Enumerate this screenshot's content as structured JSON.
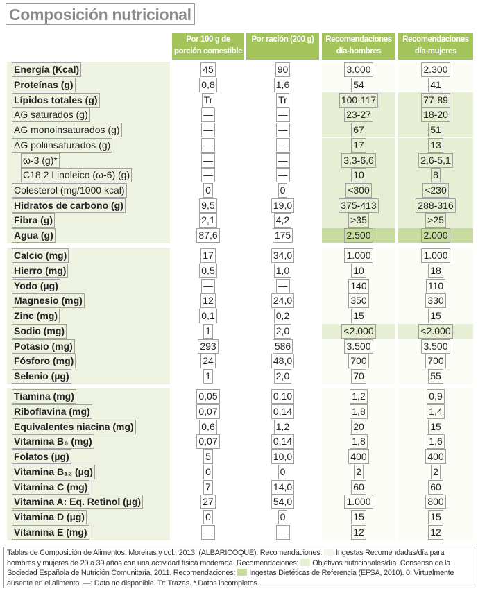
{
  "title": "Composición nutricional",
  "headers": [
    "Por 100 g de porción comestible",
    "Por ración (200 g)",
    "Recomendaciones día-hombres",
    "Recomendaciones día-mujeres"
  ],
  "colors": {
    "header": "#a3c45a",
    "label_bg": "#eef3e1",
    "ingestas": "#f3f6ea",
    "objetivos": "#e6eed4",
    "efsa": "#c9dca0"
  },
  "sections": [
    {
      "rows": [
        {
          "label": "Energía (Kcal)",
          "bold": true,
          "v": [
            "45",
            "90",
            "3.000",
            "2.300"
          ],
          "hl": 0
        },
        {
          "label": "Proteínas (g)",
          "bold": true,
          "v": [
            "0,8",
            "1,6",
            "54",
            "41"
          ],
          "hl": 0
        },
        {
          "label": "Lípidos totales (g)",
          "bold": true,
          "v": [
            "Tr",
            "Tr",
            "100-117",
            "77-89"
          ],
          "hl": 1
        },
        {
          "label": "AG saturados (g)",
          "bold": false,
          "v": [
            "—",
            "—",
            "23-27",
            "18-20"
          ],
          "hl": 1
        },
        {
          "label": "AG monoinsaturados (g)",
          "bold": false,
          "v": [
            "—",
            "—",
            "67",
            "51"
          ],
          "hl": 1
        },
        {
          "label": "AG poliinsaturados (g)",
          "bold": false,
          "v": [
            "—",
            "—",
            "17",
            "13"
          ],
          "hl": 1
        },
        {
          "label": "ω-3 (g)*",
          "bold": false,
          "indent": true,
          "v": [
            "—",
            "—",
            "3,3-6,6",
            "2,6-5,1"
          ],
          "hl": 1
        },
        {
          "label": "C18:2 Linoleico (ω-6) (g)",
          "bold": false,
          "indent": true,
          "v": [
            "—",
            "—",
            "10",
            "8"
          ],
          "hl": 1
        },
        {
          "label": "Colesterol (mg/1000 kcal)",
          "bold": false,
          "v": [
            "0",
            "0",
            "<300",
            "<230"
          ],
          "hl": 1
        },
        {
          "label": "Hidratos de carbono (g)",
          "bold": true,
          "v": [
            "9,5",
            "19,0",
            "375-413",
            "288-316"
          ],
          "hl": 1
        },
        {
          "label": "Fibra (g)",
          "bold": true,
          "v": [
            "2,1",
            "4,2",
            ">35",
            ">25"
          ],
          "hl": 1
        },
        {
          "label": "Agua (g)",
          "bold": true,
          "v": [
            "87,6",
            "175",
            "2.500",
            "2.000"
          ],
          "hl": 2
        }
      ]
    },
    {
      "rows": [
        {
          "label": "Calcio (mg)",
          "bold": true,
          "v": [
            "17",
            "34,0",
            "1.000",
            "1.000"
          ],
          "hl": 0
        },
        {
          "label": "Hierro (mg)",
          "bold": true,
          "v": [
            "0,5",
            "1,0",
            "10",
            "18"
          ],
          "hl": 0
        },
        {
          "label": "Yodo (µg)",
          "bold": true,
          "v": [
            "—",
            "—",
            "140",
            "110"
          ],
          "hl": 0
        },
        {
          "label": "Magnesio (mg)",
          "bold": true,
          "v": [
            "12",
            "24,0",
            "350",
            "330"
          ],
          "hl": 0
        },
        {
          "label": "Zinc (mg)",
          "bold": true,
          "v": [
            "0,1",
            "0,2",
            "15",
            "15"
          ],
          "hl": 0
        },
        {
          "label": "Sodio (mg)",
          "bold": true,
          "v": [
            "1",
            "2,0",
            "<2.000",
            "<2.000"
          ],
          "hl": 1
        },
        {
          "label": "Potasio (mg)",
          "bold": true,
          "v": [
            "293",
            "586",
            "3.500",
            "3.500"
          ],
          "hl": 0
        },
        {
          "label": "Fósforo (mg)",
          "bold": true,
          "v": [
            "24",
            "48,0",
            "700",
            "700"
          ],
          "hl": 0
        },
        {
          "label": "Selenio (µg)",
          "bold": true,
          "v": [
            "1",
            "2,0",
            "70",
            "55"
          ],
          "hl": 0
        }
      ]
    },
    {
      "rows": [
        {
          "label": "Tiamina (mg)",
          "bold": true,
          "v": [
            "0,05",
            "0,10",
            "1,2",
            "0,9"
          ],
          "hl": 0
        },
        {
          "label": "Riboflavina (mg)",
          "bold": true,
          "v": [
            "0,07",
            "0,14",
            "1,8",
            "1,4"
          ],
          "hl": 0
        },
        {
          "label": "Equivalentes niacina (mg)",
          "bold": true,
          "v": [
            "0,6",
            "1,2",
            "20",
            "15"
          ],
          "hl": 0
        },
        {
          "label": "Vitamina B₆ (mg)",
          "bold": true,
          "v": [
            "0,07",
            "0,14",
            "1,8",
            "1,6"
          ],
          "hl": 0
        },
        {
          "label": "Folatos (µg)",
          "bold": true,
          "v": [
            "5",
            "10,0",
            "400",
            "400"
          ],
          "hl": 0
        },
        {
          "label": "Vitamina B₁₂ (µg)",
          "bold": true,
          "v": [
            "0",
            "0",
            "2",
            "2"
          ],
          "hl": 0
        },
        {
          "label": "Vitamina C (mg)",
          "bold": true,
          "v": [
            "7",
            "14,0",
            "60",
            "60"
          ],
          "hl": 0
        },
        {
          "label": "Vitamina A: Eq. Retinol (µg)",
          "bold": true,
          "v": [
            "27",
            "54,0",
            "1.000",
            "800"
          ],
          "hl": 0
        },
        {
          "label": "Vitamina D (µg)",
          "bold": true,
          "v": [
            "0",
            "0",
            "15",
            "15"
          ],
          "hl": 0
        },
        {
          "label": "Vitamina E (mg)",
          "bold": true,
          "v": [
            "—",
            "—",
            "12",
            "12"
          ],
          "hl": 0
        }
      ]
    }
  ],
  "footer": {
    "p1": "Tablas de Composición de Alimentos. Moreiras y col., 2013. (ALBARICOQUE). Recomendaciones:",
    "p2": "Ingestas Recomendadas/día para hombres y mujeres de 20 a 39 años con una actividad física moderada. Recomendaciones:",
    "p3": "Objetivos nutricionales/día. Consenso de la Sociedad Española de Nutrición Comunitaria, 2011. Recomendaciones:",
    "p4": "Ingestas Dietéticas de Referencia (EFSA, 2010). 0: Virtualmente ausente en el alimento. —: Dato no disponible. Tr: Trazas. * Datos incompletos."
  }
}
